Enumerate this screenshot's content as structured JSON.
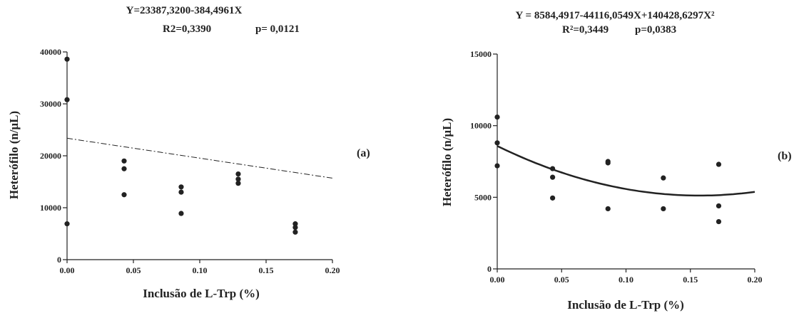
{
  "chart_data": [
    {
      "type": "scatter",
      "panel_label": "(a)",
      "equation": "Y=23387,3200-384,4961X",
      "r2_text": "R2=0,3390",
      "p_text": "p= 0,0121",
      "xlabel": "Inclusão de L-Trp (%)",
      "ylabel": "Heterófilo  (n/μL)",
      "xlim": [
        0,
        0.2
      ],
      "ylim": [
        0,
        40000
      ],
      "x_ticks": [
        0,
        0.05,
        0.1,
        0.15,
        0.2
      ],
      "x_tick_labels": [
        "0.00",
        "0.05",
        "0.10",
        "0.15",
        "0.20"
      ],
      "y_ticks": [
        0,
        10000,
        20000,
        30000,
        40000
      ],
      "y_tick_labels": [
        "0",
        "10000",
        "20000",
        "30000",
        "40000"
      ],
      "points": [
        {
          "x": 0.0,
          "y": 38600
        },
        {
          "x": 0.0,
          "y": 30800
        },
        {
          "x": 0.0,
          "y": 6900
        },
        {
          "x": 0.043,
          "y": 19000
        },
        {
          "x": 0.043,
          "y": 17500
        },
        {
          "x": 0.043,
          "y": 12500
        },
        {
          "x": 0.086,
          "y": 14000
        },
        {
          "x": 0.086,
          "y": 13000
        },
        {
          "x": 0.086,
          "y": 8900
        },
        {
          "x": 0.129,
          "y": 16500
        },
        {
          "x": 0.129,
          "y": 15500
        },
        {
          "x": 0.129,
          "y": 14700
        },
        {
          "x": 0.172,
          "y": 6900
        },
        {
          "x": 0.172,
          "y": 6200
        },
        {
          "x": 0.172,
          "y": 5300
        }
      ],
      "fit": {
        "kind": "linear",
        "style": "dash-dot",
        "coefficients": [
          23387.32,
          -384.4961
        ],
        "x_scale": 100
      }
    },
    {
      "type": "scatter",
      "panel_label": "(b)",
      "equation": "Y = 8584,4917-44116,0549X+140428,6297X²",
      "r2_text": "R²=0,3449",
      "p_text": "p=0,0383",
      "xlabel": "Inclusão de L-Trp (%)",
      "ylabel": "Heterófilo (n/μL)",
      "xlim": [
        0,
        0.2
      ],
      "ylim": [
        0,
        15000
      ],
      "x_ticks": [
        0,
        0.05,
        0.1,
        0.15,
        0.2
      ],
      "x_tick_labels": [
        "0.00",
        "0.05",
        "0.10",
        "0.15",
        "0.20"
      ],
      "y_ticks": [
        0,
        5000,
        10000,
        15000
      ],
      "y_tick_labels": [
        "0",
        "5000",
        "10000",
        "15000"
      ],
      "points": [
        {
          "x": 0.0,
          "y": 10600
        },
        {
          "x": 0.0,
          "y": 8800
        },
        {
          "x": 0.0,
          "y": 7200
        },
        {
          "x": 0.043,
          "y": 7000
        },
        {
          "x": 0.043,
          "y": 6400
        },
        {
          "x": 0.043,
          "y": 4950
        },
        {
          "x": 0.086,
          "y": 7500
        },
        {
          "x": 0.086,
          "y": 7400
        },
        {
          "x": 0.086,
          "y": 4200
        },
        {
          "x": 0.129,
          "y": 6350
        },
        {
          "x": 0.129,
          "y": 4200
        },
        {
          "x": 0.172,
          "y": 7300
        },
        {
          "x": 0.172,
          "y": 4400
        },
        {
          "x": 0.172,
          "y": 3300
        }
      ],
      "fit": {
        "kind": "quadratic",
        "style": "solid",
        "coefficients": [
          8584.4917,
          -44116.0549,
          140428.6297
        ],
        "x_scale": 1
      }
    }
  ]
}
